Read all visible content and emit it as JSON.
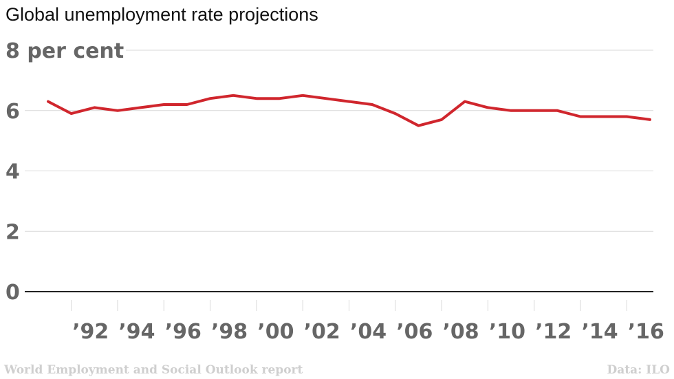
{
  "title": "Global unemployment rate projections",
  "source_left": "World Employment and Social Outlook report",
  "source_right": "Data: ILO",
  "colors": {
    "line": "#d0262d",
    "grid": "#d9d9d9",
    "axis": "#222222",
    "tick_text": "#666666"
  },
  "chart_data": {
    "type": "line",
    "title": "Global unemployment rate projections",
    "xlabel": "",
    "ylabel": "",
    "ylim": [
      0,
      8
    ],
    "xlim": [
      1990.5,
      2016.5
    ],
    "y_ticks": [
      {
        "value": 0,
        "label": "0"
      },
      {
        "value": 2,
        "label": "2"
      },
      {
        "value": 4,
        "label": "4"
      },
      {
        "value": 6,
        "label": "6"
      },
      {
        "value": 8,
        "label": "8 per cent"
      }
    ],
    "x_ticks": [
      {
        "value": 1992,
        "label": "’92"
      },
      {
        "value": 1994,
        "label": "’94"
      },
      {
        "value": 1996,
        "label": "’96"
      },
      {
        "value": 1998,
        "label": "’98"
      },
      {
        "value": 2000,
        "label": "’00"
      },
      {
        "value": 2002,
        "label": "’02"
      },
      {
        "value": 2004,
        "label": "’04"
      },
      {
        "value": 2006,
        "label": "’06"
      },
      {
        "value": 2008,
        "label": "’08"
      },
      {
        "value": 2010,
        "label": "’10"
      },
      {
        "value": 2012,
        "label": "’12"
      },
      {
        "value": 2014,
        "label": "’14"
      },
      {
        "value": 2016,
        "label": "’16"
      }
    ],
    "grid": true,
    "series": [
      {
        "x": [
          1991,
          1992,
          1993,
          1994,
          1995,
          1996,
          1997,
          1998,
          1999,
          2000,
          2001,
          2002,
          2003,
          2004,
          2005,
          2006,
          2007,
          2008,
          2009,
          2010,
          2011,
          2012,
          2013,
          2014,
          2015,
          2016,
          2017
        ],
        "values": [
          6.3,
          5.9,
          6.1,
          6.0,
          6.1,
          6.2,
          6.2,
          6.4,
          6.5,
          6.4,
          6.4,
          6.5,
          6.4,
          6.3,
          6.2,
          5.9,
          5.5,
          5.7,
          6.3,
          6.1,
          6.0,
          6.0,
          6.0,
          5.8,
          5.8,
          5.8,
          5.7
        ]
      }
    ]
  }
}
